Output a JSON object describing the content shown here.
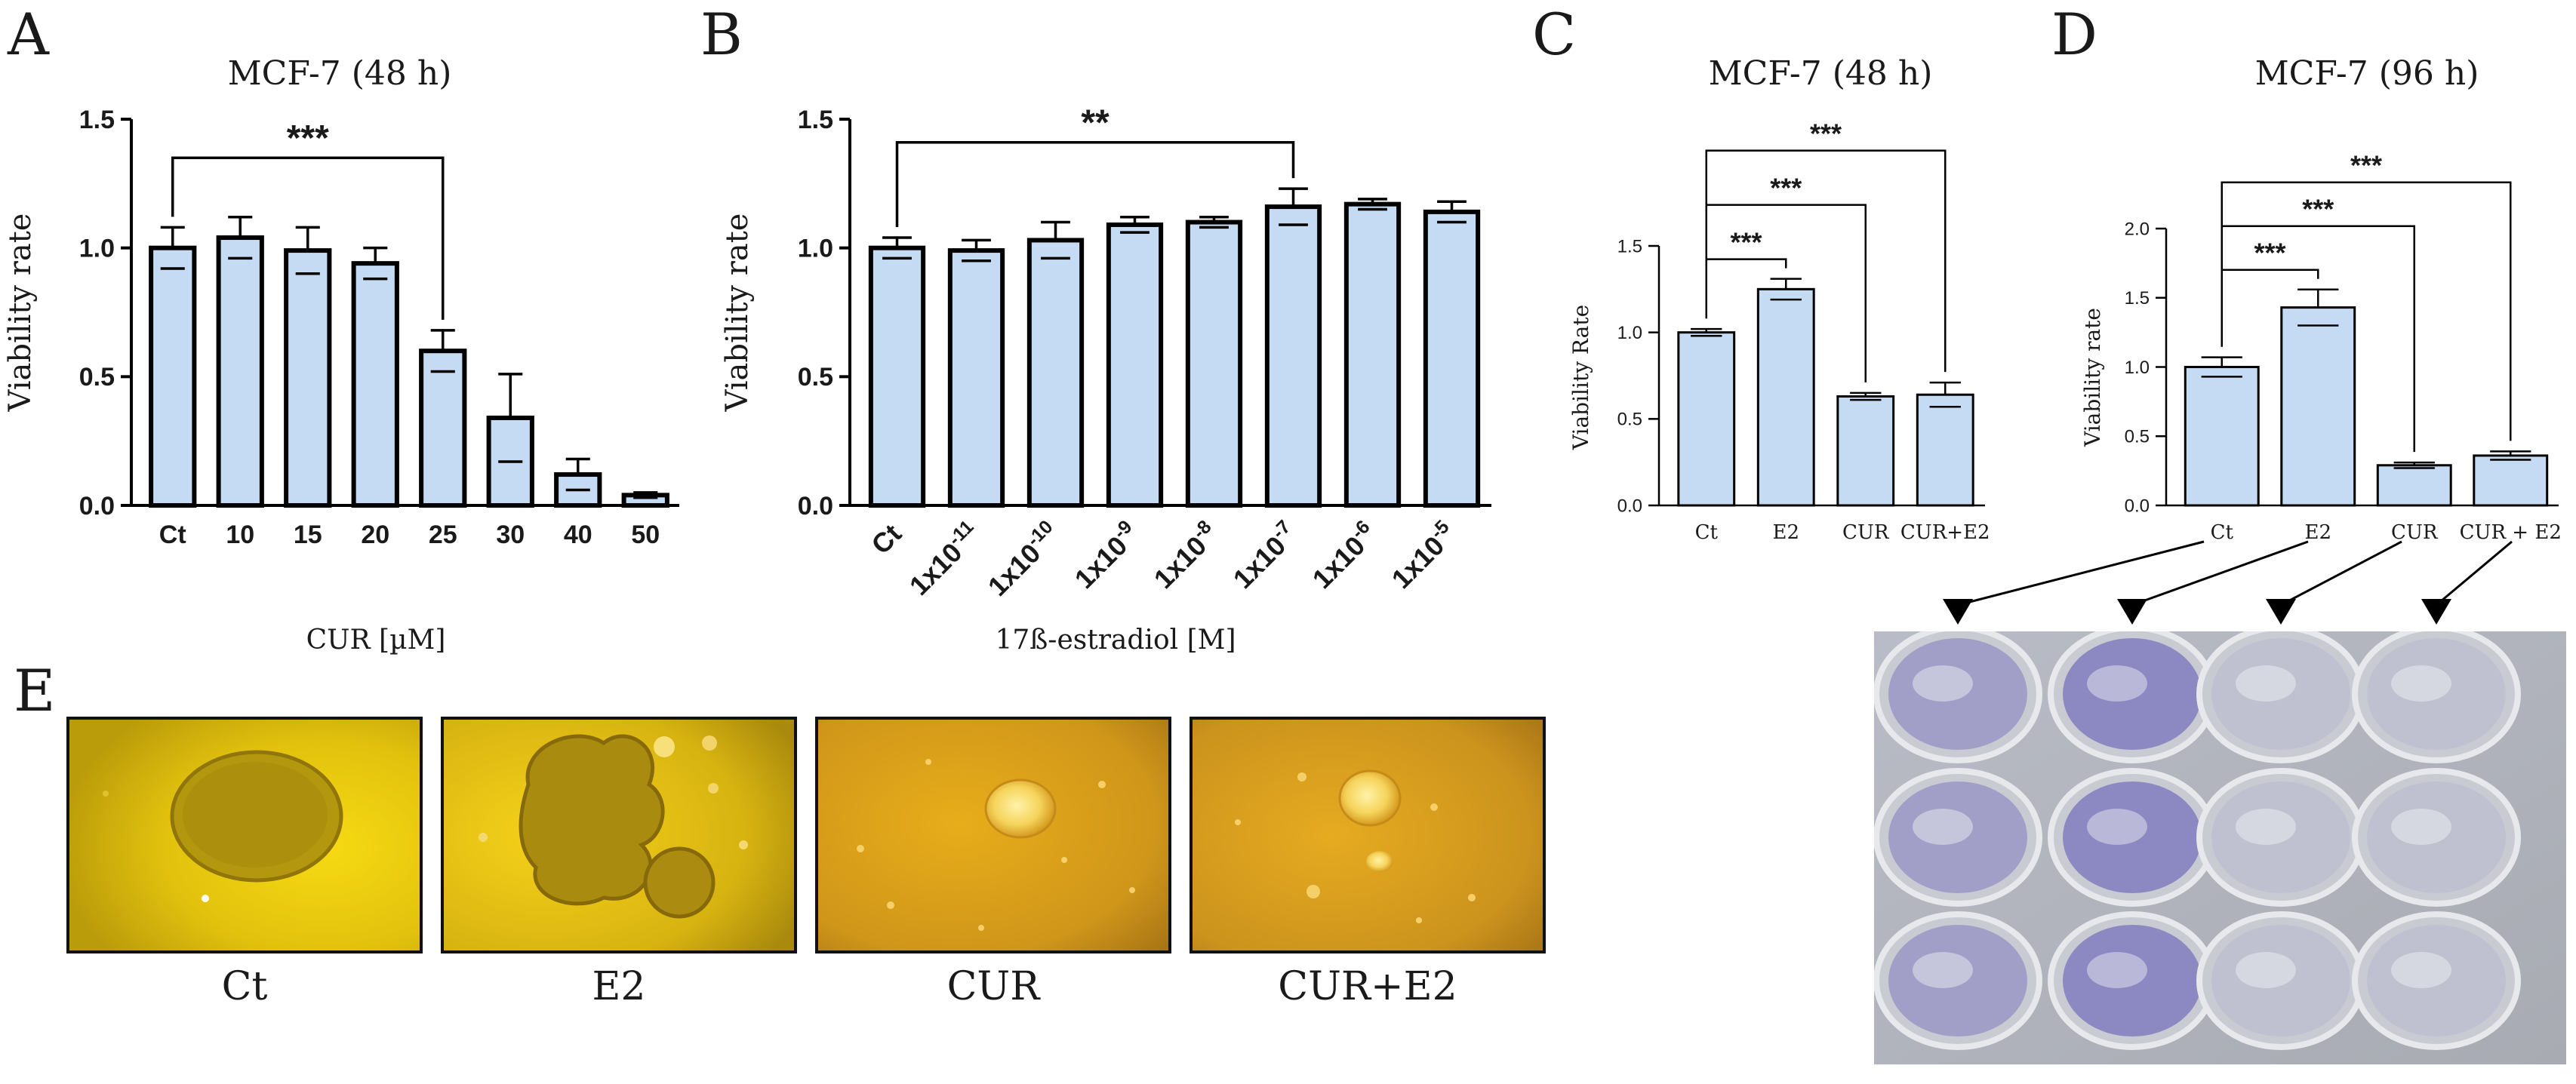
{
  "chart_data": [
    {
      "id": "A",
      "type": "bar",
      "panel_letter": "A",
      "title": "MCF-7 (48 h)",
      "xlabel": "CUR [µM]",
      "ylabel": "Viability rate",
      "ylim": [
        0,
        1.5
      ],
      "yticks": [
        "0.0",
        "0.5",
        "1.0",
        "1.5"
      ],
      "categories": [
        "Ct",
        "10",
        "15",
        "20",
        "25",
        "30",
        "40",
        "50"
      ],
      "values": [
        1.0,
        1.04,
        0.99,
        0.94,
        0.6,
        0.34,
        0.12,
        0.04
      ],
      "errors": [
        0.08,
        0.08,
        0.09,
        0.06,
        0.08,
        0.17,
        0.06,
        0.01
      ],
      "significance": [
        {
          "from": 0,
          "to": 4,
          "label": "***"
        }
      ]
    },
    {
      "id": "B",
      "type": "bar",
      "panel_letter": "B",
      "title": "",
      "xlabel": "17ß-estradiol [M]",
      "ylabel": "Viability rate",
      "ylim": [
        0,
        1.5
      ],
      "yticks": [
        "0.0",
        "0.5",
        "1.0",
        "1.5"
      ],
      "categories": [
        {
          "base": "Ct",
          "exp": ""
        },
        {
          "base": "1x10",
          "exp": "-11"
        },
        {
          "base": "1x10",
          "exp": "-10"
        },
        {
          "base": "1x10",
          "exp": "-9"
        },
        {
          "base": "1x10",
          "exp": "-8"
        },
        {
          "base": "1x10",
          "exp": "-7"
        },
        {
          "base": "1x10",
          "exp": "-6"
        },
        {
          "base": "1x10",
          "exp": "-5"
        }
      ],
      "values": [
        1.0,
        0.99,
        1.03,
        1.09,
        1.1,
        1.16,
        1.17,
        1.14
      ],
      "errors": [
        0.04,
        0.04,
        0.07,
        0.03,
        0.02,
        0.07,
        0.02,
        0.04
      ],
      "significance": [
        {
          "from": 0,
          "to": 5,
          "label": "**"
        }
      ]
    },
    {
      "id": "C",
      "type": "bar",
      "panel_letter": "C",
      "title": "MCF-7 (48 h)",
      "xlabel": "",
      "ylabel": "Viability Rate",
      "ylim": [
        0,
        1.5
      ],
      "yticks": [
        "0.0",
        "0.5",
        "1.0",
        "1.5"
      ],
      "categories": [
        "Ct",
        "E2",
        "CUR",
        "CUR+E2"
      ],
      "values": [
        1.0,
        1.25,
        0.63,
        0.64
      ],
      "errors": [
        0.02,
        0.06,
        0.02,
        0.07
      ],
      "significance": [
        {
          "from": 0,
          "to": 1,
          "label": "***"
        },
        {
          "from": 0,
          "to": 2,
          "label": "***"
        },
        {
          "from": 0,
          "to": 3,
          "label": "***"
        }
      ]
    },
    {
      "id": "D",
      "type": "bar",
      "panel_letter": "D",
      "title": "MCF-7 (96 h)",
      "xlabel": "",
      "ylabel": "Viability rate",
      "ylim": [
        0,
        2.0
      ],
      "yticks": [
        "0.0",
        "0.5",
        "1.0",
        "1.5",
        "2.0"
      ],
      "categories": [
        "Ct",
        "E2",
        "CUR",
        "CUR + E2"
      ],
      "values": [
        1.0,
        1.43,
        0.29,
        0.36
      ],
      "errors": [
        0.07,
        0.13,
        0.02,
        0.03
      ],
      "significance": [
        {
          "from": 0,
          "to": 1,
          "label": "***"
        },
        {
          "from": 0,
          "to": 2,
          "label": "***"
        },
        {
          "from": 0,
          "to": 3,
          "label": "***"
        }
      ]
    }
  ],
  "panel_e": {
    "letter": "E",
    "images": [
      {
        "label": "Ct",
        "photo": "large-spheroid-on-yellow"
      },
      {
        "label": "E2",
        "photo": "irregular-large-colony-on-yellow"
      },
      {
        "label": "CUR",
        "photo": "small-spheroid-on-orange"
      },
      {
        "label": "CUR+E2",
        "photo": "small-spheroid-on-orange"
      }
    ]
  },
  "well_plate": {
    "photo": "crystal-violet-stained-well-plate",
    "rows": 3,
    "columns": 4,
    "stain_intensity": [
      0.55,
      0.85,
      0.12,
      0.12
    ]
  },
  "colors": {
    "bar_fill": "#c5dbf3",
    "bar_stroke": "#000000",
    "text": "#1a1a1a"
  }
}
